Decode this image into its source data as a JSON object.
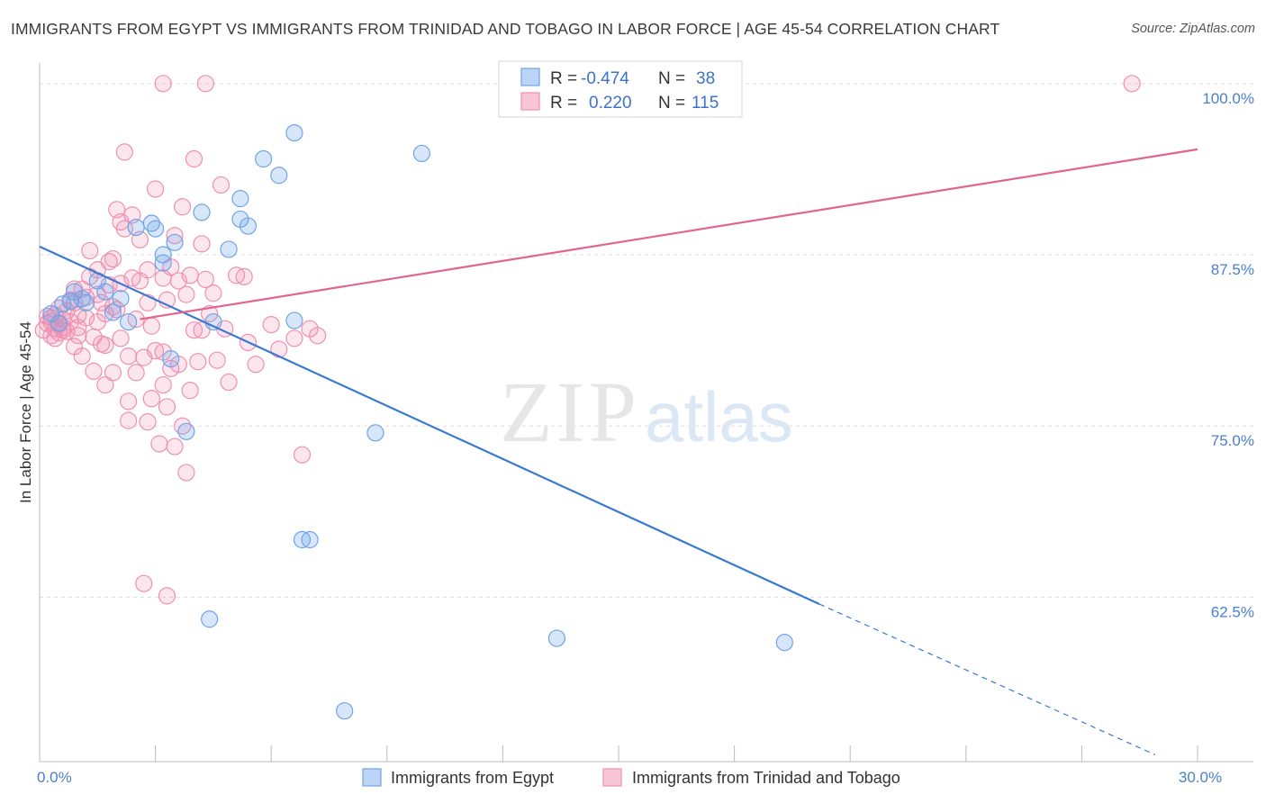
{
  "title": "IMMIGRANTS FROM EGYPT VS IMMIGRANTS FROM TRINIDAD AND TOBAGO IN LABOR FORCE | AGE 45-54 CORRELATION CHART",
  "source": "Source: ZipAtlas.com",
  "watermark": {
    "zip": "ZIP",
    "atlas": "atlas"
  },
  "colors": {
    "egypt": "#6fa4e8",
    "egypt_line": "#3a78d4",
    "trinidad": "#f08fb0",
    "trinidad_line": "#e06690",
    "tick": "#4a7fd0",
    "grid": "#dddddd"
  },
  "legend": {
    "egypt": {
      "r_label": "R =",
      "r_value": "-0.474",
      "n_label": "N =",
      "n_value": "38"
    },
    "trinidad": {
      "r_label": "R =",
      "r_value": "0.220",
      "n_label": "N =",
      "n_value": "115"
    }
  },
  "chart_data": {
    "type": "scatter",
    "ylabel": "In Labor Force | Age 45-54",
    "xlim": [
      0,
      30
    ],
    "ylim": [
      50.5,
      101.5
    ],
    "x_tick_labels": [
      {
        "value": 0,
        "label": "0.0%"
      },
      {
        "value": 30,
        "label": "30.0%"
      }
    ],
    "y_tick_labels": [
      {
        "value": 100,
        "label": "100.0%"
      },
      {
        "value": 87.5,
        "label": "87.5%"
      },
      {
        "value": 75,
        "label": "75.0%"
      },
      {
        "value": 62.5,
        "label": "62.5%"
      }
    ],
    "series": [
      {
        "name": "Immigrants from Egypt",
        "color": "#6fa4e8",
        "trend": {
          "x0": 0,
          "y0": 88.1,
          "x1": 20.2,
          "y1": 62.0,
          "dash_to_x": 28.9,
          "dash_to_y": 51.0
        },
        "points": [
          [
            0.3,
            83.2
          ],
          [
            0.5,
            82.5
          ],
          [
            0.6,
            83.9
          ],
          [
            0.8,
            84.1
          ],
          [
            0.9,
            84.8
          ],
          [
            1.1,
            84.3
          ],
          [
            1.2,
            84.0
          ],
          [
            1.5,
            85.6
          ],
          [
            1.7,
            84.8
          ],
          [
            1.9,
            83.3
          ],
          [
            2.1,
            84.3
          ],
          [
            2.3,
            82.6
          ],
          [
            2.5,
            89.5
          ],
          [
            2.9,
            89.8
          ],
          [
            3.0,
            89.4
          ],
          [
            3.2,
            87.5
          ],
          [
            3.2,
            86.9
          ],
          [
            3.5,
            88.4
          ],
          [
            3.4,
            79.9
          ],
          [
            3.8,
            74.6
          ],
          [
            4.2,
            90.6
          ],
          [
            4.5,
            82.6
          ],
          [
            4.9,
            87.9
          ],
          [
            5.2,
            90.1
          ],
          [
            5.2,
            91.6
          ],
          [
            5.4,
            89.6
          ],
          [
            5.8,
            94.5
          ],
          [
            6.2,
            93.3
          ],
          [
            6.6,
            82.7
          ],
          [
            6.6,
            96.4
          ],
          [
            6.8,
            66.7
          ],
          [
            7.0,
            66.7
          ],
          [
            8.7,
            74.5
          ],
          [
            9.9,
            94.9
          ],
          [
            4.4,
            60.9
          ],
          [
            13.4,
            59.5
          ],
          [
            19.3,
            59.2
          ],
          [
            7.9,
            54.2
          ]
        ]
      },
      {
        "name": "Immigrants from Trinidad and Tobago",
        "color": "#f08fb0",
        "trend": {
          "x0": 2.6,
          "y0": 82.8,
          "x1": 30,
          "y1": 95.2
        },
        "points": [
          [
            0.1,
            82.0
          ],
          [
            0.2,
            82.5
          ],
          [
            0.2,
            83.0
          ],
          [
            0.3,
            81.6
          ],
          [
            0.3,
            82.9
          ],
          [
            0.4,
            82.1
          ],
          [
            0.4,
            83.1
          ],
          [
            0.5,
            82.4
          ],
          [
            0.5,
            81.8
          ],
          [
            0.6,
            82.8
          ],
          [
            0.6,
            82.2
          ],
          [
            0.7,
            81.9
          ],
          [
            0.7,
            83.4
          ],
          [
            0.8,
            82.6
          ],
          [
            0.8,
            84.2
          ],
          [
            0.9,
            80.8
          ],
          [
            0.9,
            84.0
          ],
          [
            1.0,
            82.2
          ],
          [
            1.0,
            81.6
          ],
          [
            1.1,
            85.0
          ],
          [
            1.1,
            80.1
          ],
          [
            1.2,
            82.9
          ],
          [
            1.3,
            87.8
          ],
          [
            1.3,
            85.9
          ],
          [
            1.4,
            81.5
          ],
          [
            1.4,
            79.0
          ],
          [
            1.5,
            84.6
          ],
          [
            1.5,
            86.4
          ],
          [
            1.6,
            84.0
          ],
          [
            1.6,
            81.0
          ],
          [
            1.7,
            83.2
          ],
          [
            1.7,
            80.9
          ],
          [
            1.8,
            87.0
          ],
          [
            1.8,
            85.3
          ],
          [
            1.9,
            83.7
          ],
          [
            1.9,
            78.9
          ],
          [
            2.0,
            90.8
          ],
          [
            2.0,
            83.5
          ],
          [
            2.1,
            89.9
          ],
          [
            2.1,
            81.4
          ],
          [
            2.2,
            95.0
          ],
          [
            2.2,
            89.4
          ],
          [
            2.3,
            80.1
          ],
          [
            2.3,
            76.8
          ],
          [
            2.4,
            90.4
          ],
          [
            2.4,
            85.8
          ],
          [
            2.5,
            82.8
          ],
          [
            2.5,
            78.9
          ],
          [
            2.6,
            88.6
          ],
          [
            2.6,
            85.6
          ],
          [
            2.7,
            80.0
          ],
          [
            2.8,
            86.4
          ],
          [
            2.8,
            84.0
          ],
          [
            2.9,
            77.0
          ],
          [
            3.0,
            92.3
          ],
          [
            3.0,
            80.5
          ],
          [
            3.1,
            73.7
          ],
          [
            3.2,
            85.8
          ],
          [
            3.2,
            78.0
          ],
          [
            3.3,
            84.2
          ],
          [
            3.3,
            76.4
          ],
          [
            3.4,
            86.6
          ],
          [
            3.4,
            79.2
          ],
          [
            3.5,
            88.9
          ],
          [
            3.5,
            73.5
          ],
          [
            3.6,
            85.6
          ],
          [
            3.6,
            79.5
          ],
          [
            3.7,
            91.0
          ],
          [
            3.7,
            75.0
          ],
          [
            3.8,
            84.6
          ],
          [
            3.8,
            71.6
          ],
          [
            3.9,
            86.0
          ],
          [
            3.9,
            77.6
          ],
          [
            4.0,
            94.5
          ],
          [
            4.0,
            82.0
          ],
          [
            4.1,
            79.7
          ],
          [
            4.2,
            88.3
          ],
          [
            4.2,
            82.0
          ],
          [
            4.3,
            85.7
          ],
          [
            4.4,
            83.2
          ],
          [
            4.5,
            84.7
          ],
          [
            4.6,
            79.8
          ],
          [
            4.7,
            92.6
          ],
          [
            4.8,
            82.1
          ],
          [
            4.9,
            78.2
          ],
          [
            5.1,
            86.0
          ],
          [
            5.3,
            85.9
          ],
          [
            5.4,
            81.1
          ],
          [
            5.6,
            79.5
          ],
          [
            6.0,
            82.4
          ],
          [
            6.2,
            80.6
          ],
          [
            6.6,
            81.4
          ],
          [
            6.8,
            72.9
          ],
          [
            7.0,
            82.1
          ],
          [
            7.2,
            81.6
          ],
          [
            1.7,
            78.0
          ],
          [
            2.3,
            75.4
          ],
          [
            2.8,
            75.3
          ],
          [
            3.2,
            80.4
          ],
          [
            2.7,
            63.5
          ],
          [
            3.3,
            62.6
          ],
          [
            3.2,
            100.0
          ],
          [
            4.3,
            100.0
          ],
          [
            28.3,
            100.0
          ],
          [
            1.9,
            87.2
          ],
          [
            2.1,
            85.4
          ],
          [
            1.2,
            84.4
          ],
          [
            0.9,
            85.0
          ],
          [
            0.5,
            83.6
          ],
          [
            0.3,
            82.6
          ],
          [
            0.6,
            82.0
          ],
          [
            0.4,
            81.4
          ],
          [
            2.9,
            82.3
          ],
          [
            1.5,
            82.6
          ],
          [
            1.0,
            83.1
          ]
        ]
      }
    ]
  }
}
